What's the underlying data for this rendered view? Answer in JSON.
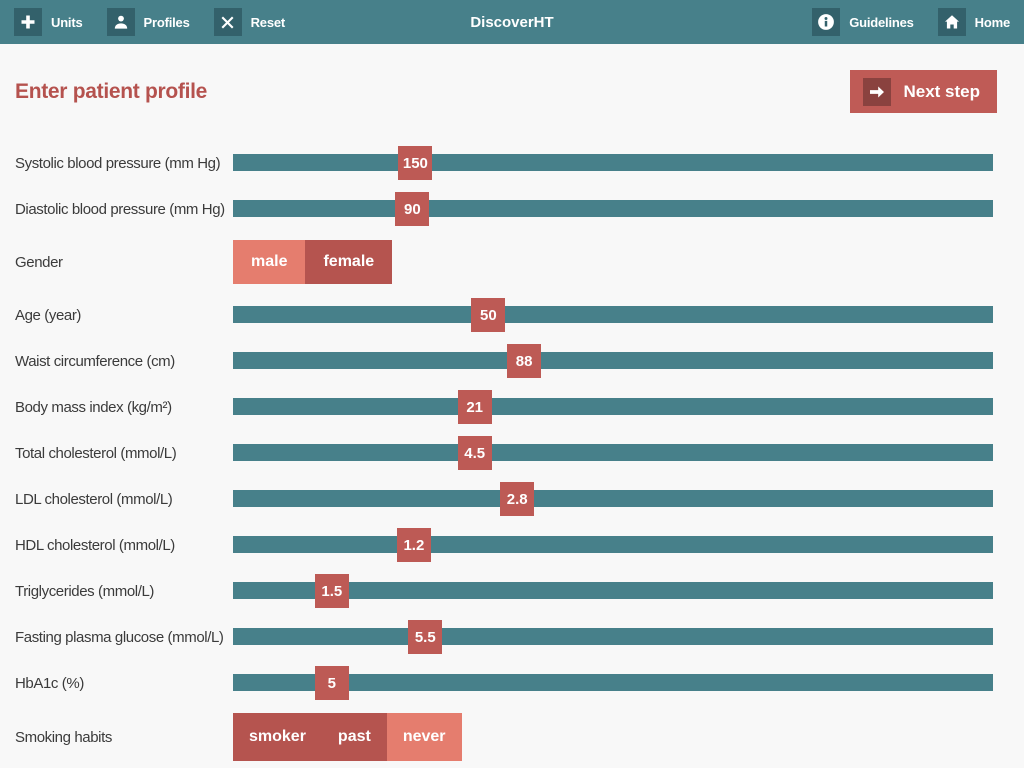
{
  "topbar": {
    "title": "DiscoverHT",
    "left_items": [
      {
        "label": "Units",
        "icon": "plus-icon"
      },
      {
        "label": "Profiles",
        "icon": "person-icon"
      },
      {
        "label": "Reset",
        "icon": "x-icon"
      }
    ],
    "right_items": [
      {
        "label": "Guidelines",
        "icon": "info-icon"
      },
      {
        "label": "Home",
        "icon": "home-icon"
      }
    ]
  },
  "page": {
    "title": "Enter patient profile",
    "next_button_label": "Next step",
    "next_button_icon": "arrow-right-icon"
  },
  "form": {
    "rows": [
      {
        "type": "slider",
        "label": "Systolic blood pressure (mm Hg)",
        "value": "150",
        "pos_pct": 24.0
      },
      {
        "type": "slider",
        "label": "Diastolic blood pressure (mm Hg)",
        "value": "90",
        "pos_pct": 23.6
      },
      {
        "type": "toggle",
        "label": "Gender",
        "options": [
          {
            "label": "male",
            "selected": true
          },
          {
            "label": "female",
            "selected": false
          }
        ]
      },
      {
        "type": "slider",
        "label": "Age (year)",
        "value": "50",
        "pos_pct": 33.6
      },
      {
        "type": "slider",
        "label": "Waist circumference (cm)",
        "value": "88",
        "pos_pct": 38.3
      },
      {
        "type": "slider",
        "label": "Body mass index (kg/m²)",
        "value": "21",
        "pos_pct": 31.8
      },
      {
        "type": "slider",
        "label": "Total cholesterol (mmol/L)",
        "value": "4.5",
        "pos_pct": 31.8
      },
      {
        "type": "slider",
        "label": "LDL cholesterol (mmol/L)",
        "value": "2.8",
        "pos_pct": 37.4
      },
      {
        "type": "slider",
        "label": "HDL cholesterol (mmol/L)",
        "value": "1.2",
        "pos_pct": 23.8
      },
      {
        "type": "slider",
        "label": "Triglycerides (mmol/L)",
        "value": "1.5",
        "pos_pct": 13.0
      },
      {
        "type": "slider",
        "label": "Fasting plasma glucose (mmol/L)",
        "value": "5.5",
        "pos_pct": 25.3
      },
      {
        "type": "slider",
        "label": "HbA1c (%)",
        "value": "5",
        "pos_pct": 13.0
      },
      {
        "type": "toggle",
        "label": "Smoking habits",
        "options": [
          {
            "label": "smoker",
            "selected": false
          },
          {
            "label": "past",
            "selected": false
          },
          {
            "label": "never",
            "selected": true
          }
        ]
      }
    ]
  },
  "colors": {
    "topbar_teal": "#47808A",
    "icon_square_teal": "#33616B",
    "slider_track_teal": "#47808A",
    "slider_handle_red": "#BD5A55",
    "selected_option_salmon": "#E57D6E",
    "unselected_option_red": "#B5544F",
    "title_red": "#B5524E",
    "next_button_red": "#BF5B56",
    "next_button_icon_square": "#8A423F",
    "background": "#F8F8F8",
    "label_text": "#3B3B3B"
  }
}
